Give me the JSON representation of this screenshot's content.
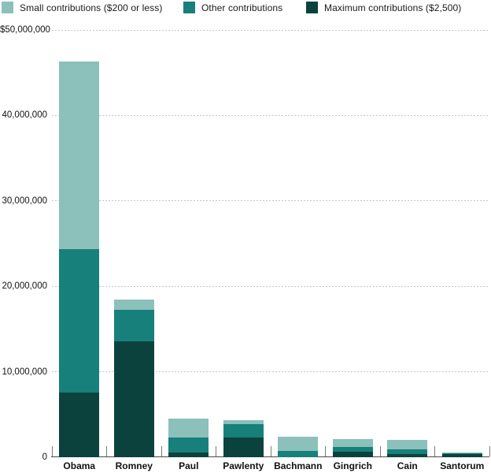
{
  "chart_data": {
    "type": "bar",
    "stacked": true,
    "title": "",
    "categories": [
      "Obama",
      "Romney",
      "Paul",
      "Pawlenty",
      "Bachmann",
      "Gingrich",
      "Cain",
      "Santorum"
    ],
    "series": [
      {
        "key": "max",
        "name": "Maximum contributions ($2,500)",
        "color": "#0c423d",
        "values": [
          7600000,
          13550000,
          550000,
          2300000,
          0,
          650000,
          400000,
          330000
        ]
      },
      {
        "key": "other",
        "name": "Other contributions",
        "color": "#17807a",
        "values": [
          16800000,
          3700000,
          1750000,
          1550000,
          750000,
          550000,
          550000,
          150000
        ]
      },
      {
        "key": "small",
        "name": "Small contributions ($200 or less)",
        "color": "#8cc0bb",
        "values": [
          21900000,
          1200000,
          2200000,
          450000,
          1650000,
          900000,
          1100000,
          100000
        ]
      }
    ],
    "totals": [
      46300000,
      18450000,
      4500000,
      4300000,
      2400000,
      2100000,
      2050000,
      580000
    ],
    "xlabel": "",
    "ylabel": "",
    "ylim": [
      0,
      50000000
    ],
    "y_ticks": [
      {
        "value": 50000000,
        "label": "$50,000,000"
      },
      {
        "value": 40000000,
        "label": "40,000,000"
      },
      {
        "value": 30000000,
        "label": "30,000,000"
      },
      {
        "value": 20000000,
        "label": "20,000,000"
      },
      {
        "value": 10000000,
        "label": "10,000,000"
      },
      {
        "value": 0,
        "label": "0"
      }
    ],
    "legend_position": "top",
    "grid": "dashed-horizontal",
    "legend": [
      {
        "label": "Small contributions ($200 or less)",
        "color": "#8cc0bb"
      },
      {
        "label": "Other contributions",
        "color": "#17807a"
      },
      {
        "label": "Maximum contributions ($2,500)",
        "color": "#0c423d"
      }
    ]
  },
  "colors": {
    "background": "#ffffff",
    "axis": "#4a4a4a",
    "tick_mark": "#7a7a7a",
    "gridline": "#c6c6c6",
    "text": "#111111"
  }
}
